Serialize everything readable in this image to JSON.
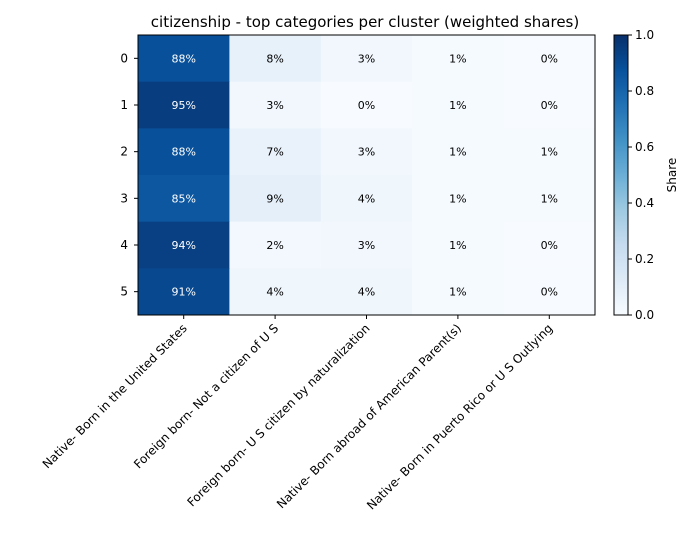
{
  "chart_data": {
    "type": "heatmap",
    "title": "citizenship - top categories per cluster (weighted shares)",
    "rows": [
      "0",
      "1",
      "2",
      "3",
      "4",
      "5"
    ],
    "columns": [
      "Native- Born in the United States",
      "Foreign born- Not a citizen of U S",
      "Foreign born- U S citizen by naturalization",
      "Native- Born abroad of American Parent(s)",
      "Native- Born in Puerto Rico or U S Outlying"
    ],
    "values": [
      [
        0.88,
        0.08,
        0.03,
        0.01,
        0.0
      ],
      [
        0.95,
        0.03,
        0.0,
        0.01,
        0.0
      ],
      [
        0.88,
        0.07,
        0.03,
        0.01,
        0.01
      ],
      [
        0.85,
        0.09,
        0.04,
        0.01,
        0.01
      ],
      [
        0.94,
        0.02,
        0.03,
        0.01,
        0.0
      ],
      [
        0.91,
        0.04,
        0.04,
        0.01,
        0.0
      ]
    ],
    "cell_labels": [
      [
        "88%",
        "8%",
        "3%",
        "1%",
        "0%"
      ],
      [
        "95%",
        "3%",
        "0%",
        "1%",
        "0%"
      ],
      [
        "88%",
        "7%",
        "3%",
        "1%",
        "1%"
      ],
      [
        "85%",
        "9%",
        "4%",
        "1%",
        "1%"
      ],
      [
        "94%",
        "2%",
        "3%",
        "1%",
        "0%"
      ],
      [
        "91%",
        "4%",
        "4%",
        "1%",
        "0%"
      ]
    ],
    "colormap": "Blues",
    "colorbar": {
      "label": "Share",
      "range": [
        0.0,
        1.0
      ],
      "ticks": [
        "0.0",
        "0.2",
        "0.4",
        "0.6",
        "0.8",
        "1.0"
      ]
    },
    "colors": {
      "low": "#f7fbff",
      "high": "#08306b"
    }
  }
}
